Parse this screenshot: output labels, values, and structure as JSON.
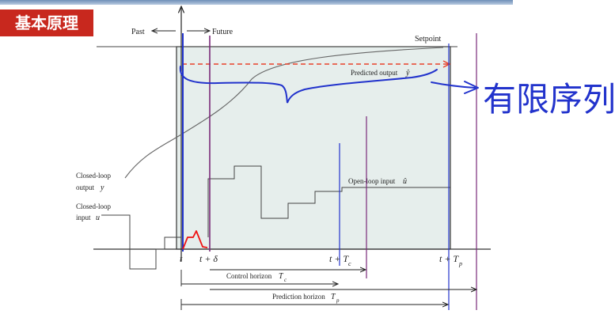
{
  "slide_title": "基本原理",
  "diagram": {
    "past_label": "Past",
    "future_label": "Future",
    "setpoint_label": "Setpoint",
    "predicted_output_label": "Predicted output",
    "predicted_output_symbol": "ŷ",
    "closed_loop_output_label": "Closed-loop",
    "closed_loop_output_label2": "output",
    "closed_loop_output_symbol": "y",
    "closed_loop_input_label": "Closed-loop",
    "closed_loop_input_label2": "input",
    "closed_loop_input_symbol": "u",
    "open_loop_input_label": "Open-loop input",
    "open_loop_input_symbol": "û",
    "tick_t": "t",
    "tick_t_delta": "t + δ",
    "tick_t_tc": "t + T",
    "tick_tc_sub": "c",
    "tick_t_tp": "t + T",
    "tick_tp_sub": "p",
    "control_horizon_label": "Control horizon",
    "control_horizon_symbol": "T",
    "control_horizon_sub": "c",
    "prediction_horizon_label": "Prediction horizon",
    "prediction_horizon_symbol": "T",
    "prediction_horizon_sub": "p"
  },
  "annotation": {
    "handwritten_text": "有限序列"
  },
  "colors": {
    "title_bg": "#c8281e",
    "box_fill": "#e6eeec",
    "ink_blue": "#2233cc",
    "ink_purple": "#7a2a7a",
    "ink_red": "#ee1111",
    "pred_dash": "#e8402a"
  }
}
